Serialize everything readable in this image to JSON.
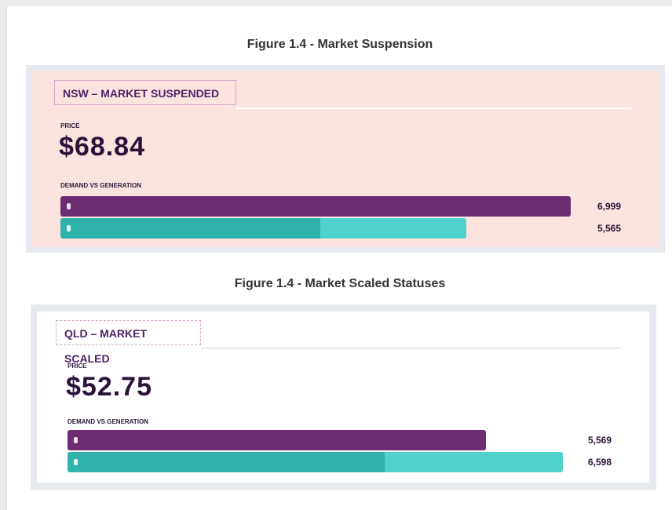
{
  "figures": [
    {
      "caption": "Figure 1.4 - Market Suspension",
      "region_label": "NSW – MARKET SUSPENDED",
      "price_label": "PRICE",
      "price": "$68.84",
      "section_label": "DEMAND VS GENERATION",
      "values": [
        6999,
        5565
      ],
      "value_labels": [
        "6,999",
        "5,565"
      ]
    },
    {
      "caption": "Figure 1.4 - Market Scaled Statuses",
      "region_label": "QLD – MARKET SCALED",
      "price_label": "PRICE",
      "price": "$52.75",
      "section_label": "DEMAND VS GENERATION",
      "values": [
        5569,
        6598
      ],
      "value_labels": [
        "5,569",
        "6,598"
      ]
    }
  ]
}
